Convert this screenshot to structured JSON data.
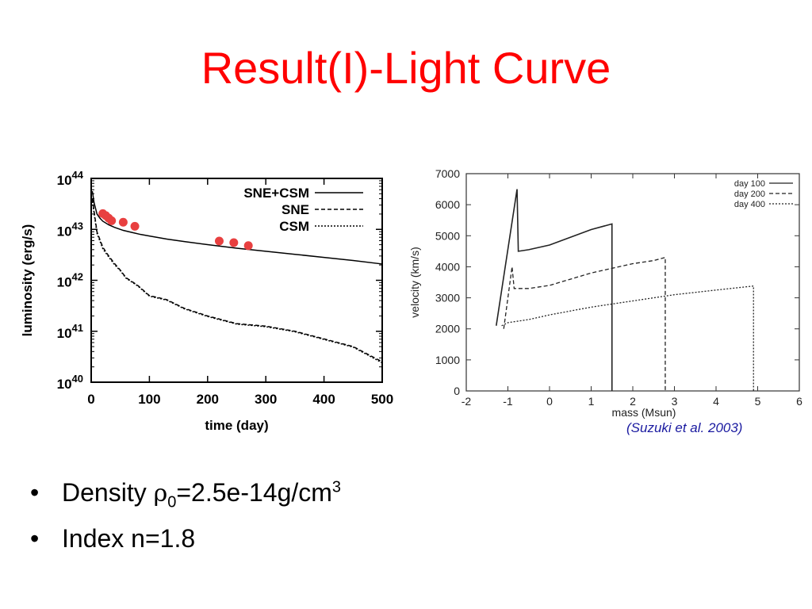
{
  "slide": {
    "title": "Result(I)-Light Curve",
    "citation": "(Suzuki et al. 2003)",
    "bullets": [
      {
        "prefix": "Density ",
        "symbol": "ρ",
        "sub": "0",
        "value": "=2.5e-14g/cm",
        "sup": "3"
      },
      {
        "text": "Index n=1.8"
      }
    ]
  },
  "colors": {
    "title": "#ff0000",
    "observed_points": "#e84040",
    "citation": "#1a1aa0"
  },
  "chart_data": [
    {
      "type": "line",
      "xlabel": "time (day)",
      "ylabel": "luminosity (erg/s)",
      "xlim": [
        0,
        500
      ],
      "ylim_log10": [
        40,
        44
      ],
      "yscale": "log",
      "xticks": [
        "0",
        "100",
        "200",
        "300",
        "400",
        "500"
      ],
      "yticks": [
        {
          "base": "10",
          "exp": "40"
        },
        {
          "base": "10",
          "exp": "41"
        },
        {
          "base": "10",
          "exp": "42"
        },
        {
          "base": "10",
          "exp": "43"
        },
        {
          "base": "10",
          "exp": "44"
        }
      ],
      "legend_position": "top-right",
      "series": [
        {
          "name": "SNE+CSM",
          "style": "solid",
          "x": [
            2,
            5,
            10,
            15,
            20,
            30,
            40,
            55,
            70,
            85,
            100,
            130,
            160,
            200,
            250,
            300,
            350,
            400,
            450,
            500
          ],
          "log10_y": [
            43.75,
            43.52,
            43.3,
            43.22,
            43.16,
            43.09,
            43.04,
            42.98,
            42.94,
            42.9,
            42.87,
            42.81,
            42.76,
            42.7,
            42.63,
            42.57,
            42.51,
            42.45,
            42.39,
            42.32
          ]
        },
        {
          "name": "SNE",
          "style": "dashed",
          "x": [
            2,
            10,
            20,
            30,
            40,
            50,
            60,
            80,
            100,
            130,
            160,
            200,
            250,
            300,
            350,
            400,
            450,
            500
          ],
          "log10_y": [
            43.6,
            42.95,
            42.65,
            42.48,
            42.33,
            42.2,
            42.05,
            41.9,
            41.7,
            41.62,
            41.45,
            41.3,
            41.15,
            41.1,
            41.0,
            40.85,
            40.7,
            40.4
          ]
        },
        {
          "name": "CSM",
          "style": "dotted",
          "x": [
            2,
            10,
            20,
            30,
            40,
            50,
            60,
            80,
            100,
            130,
            160,
            200,
            250,
            300,
            350,
            400,
            450,
            500
          ],
          "log10_y": [
            43.55,
            42.92,
            42.62,
            42.46,
            42.31,
            42.19,
            42.04,
            41.89,
            41.69,
            41.61,
            41.44,
            41.29,
            41.14,
            41.09,
            40.99,
            40.84,
            40.69,
            40.38
          ]
        }
      ],
      "points": {
        "name": "observed",
        "x": [
          20,
          25,
          30,
          35,
          55,
          75,
          220,
          245,
          270
        ],
        "log10_y": [
          43.31,
          43.27,
          43.22,
          43.17,
          43.14,
          43.06,
          42.77,
          42.74,
          42.68
        ]
      }
    },
    {
      "type": "line",
      "xlabel": "mass (Msun)",
      "ylabel": "velocity (km/s)",
      "xlim": [
        -2,
        6
      ],
      "ylim": [
        0,
        7000
      ],
      "xticks": [
        "-2",
        "-1",
        "0",
        "1",
        "2",
        "3",
        "4",
        "5",
        "6"
      ],
      "yticks": [
        "0",
        "1000",
        "2000",
        "3000",
        "4000",
        "5000",
        "6000",
        "7000"
      ],
      "legend_position": "top-right",
      "series": [
        {
          "name": "day 100",
          "style": "solid",
          "x": [
            -1.28,
            -0.78,
            -0.75,
            -0.5,
            0,
            0.5,
            1.0,
            1.5,
            1.5
          ],
          "y": [
            2100,
            6500,
            4500,
            4550,
            4700,
            4950,
            5200,
            5380,
            0
          ]
        },
        {
          "name": "day 200",
          "style": "dashed",
          "x": [
            -1.1,
            -0.9,
            -0.85,
            -0.5,
            0,
            0.5,
            1.0,
            1.5,
            2.0,
            2.5,
            2.78,
            2.78
          ],
          "y": [
            2000,
            4000,
            3300,
            3300,
            3400,
            3600,
            3800,
            3950,
            4100,
            4200,
            4300,
            0
          ]
        },
        {
          "name": "day 400",
          "style": "dotted",
          "x": [
            -1.15,
            -1.0,
            -0.5,
            0,
            1.0,
            2.0,
            3.0,
            4.0,
            4.9,
            4.9
          ],
          "y": [
            2100,
            2200,
            2300,
            2450,
            2700,
            2900,
            3100,
            3250,
            3380,
            0
          ]
        }
      ]
    }
  ]
}
